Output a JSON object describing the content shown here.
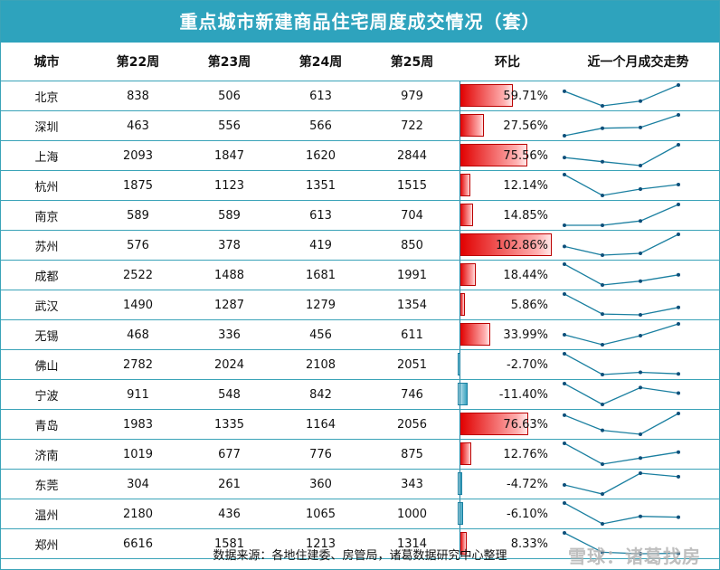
{
  "title": "重点城市新建商品住宅周度成交情况（套）",
  "source": "数据来源：各地住建委、房管局，诸葛数据研究中心整理",
  "watermark": "雪球：诸葛找房",
  "colors": {
    "header_bg": "#2ea3bd",
    "positive_bar": "#e10000",
    "negative_bar": "#3aa3c0",
    "sparkline": "#1a7fa0"
  },
  "chart_data": {
    "type": "table",
    "columns": [
      "城市",
      "第22周",
      "第23周",
      "第24周",
      "第25周",
      "环比",
      "近一个月成交走势"
    ],
    "rows": [
      {
        "city": "北京",
        "w22": 838,
        "w23": 506,
        "w24": 613,
        "w25": 979,
        "change": "59.71%",
        "change_value": 59.71
      },
      {
        "city": "深圳",
        "w22": 463,
        "w23": 556,
        "w24": 566,
        "w25": 722,
        "change": "27.56%",
        "change_value": 27.56
      },
      {
        "city": "上海",
        "w22": 2093,
        "w23": 1847,
        "w24": 1620,
        "w25": 2844,
        "change": "75.56%",
        "change_value": 75.56
      },
      {
        "city": "杭州",
        "w22": 1875,
        "w23": 1123,
        "w24": 1351,
        "w25": 1515,
        "change": "12.14%",
        "change_value": 12.14
      },
      {
        "city": "南京",
        "w22": 589,
        "w23": 589,
        "w24": 613,
        "w25": 704,
        "change": "14.85%",
        "change_value": 14.85
      },
      {
        "city": "苏州",
        "w22": 576,
        "w23": 378,
        "w24": 419,
        "w25": 850,
        "change": "102.86%",
        "change_value": 102.86
      },
      {
        "city": "成都",
        "w22": 2522,
        "w23": 1488,
        "w24": 1681,
        "w25": 1991,
        "change": "18.44%",
        "change_value": 18.44
      },
      {
        "city": "武汉",
        "w22": 1490,
        "w23": 1287,
        "w24": 1279,
        "w25": 1354,
        "change": "5.86%",
        "change_value": 5.86
      },
      {
        "city": "无锡",
        "w22": 468,
        "w23": 336,
        "w24": 456,
        "w25": 611,
        "change": "33.99%",
        "change_value": 33.99
      },
      {
        "city": "佛山",
        "w22": 2782,
        "w23": 2024,
        "w24": 2108,
        "w25": 2051,
        "change": "-2.70%",
        "change_value": -2.7
      },
      {
        "city": "宁波",
        "w22": 911,
        "w23": 548,
        "w24": 842,
        "w25": 746,
        "change": "-11.40%",
        "change_value": -11.4
      },
      {
        "city": "青岛",
        "w22": 1983,
        "w23": 1335,
        "w24": 1164,
        "w25": 2056,
        "change": "76.63%",
        "change_value": 76.63
      },
      {
        "city": "济南",
        "w22": 1019,
        "w23": 677,
        "w24": 776,
        "w25": 875,
        "change": "12.76%",
        "change_value": 12.76
      },
      {
        "city": "东莞",
        "w22": 304,
        "w23": 261,
        "w24": 360,
        "w25": 343,
        "change": "-4.72%",
        "change_value": -4.72
      },
      {
        "city": "温州",
        "w22": 2180,
        "w23": 436,
        "w24": 1065,
        "w25": 1000,
        "change": "-6.10%",
        "change_value": -6.1
      },
      {
        "city": "郑州",
        "w22": 6616,
        "w23": 1581,
        "w24": 1213,
        "w25": 1314,
        "change": "8.33%",
        "change_value": 8.33
      }
    ]
  }
}
